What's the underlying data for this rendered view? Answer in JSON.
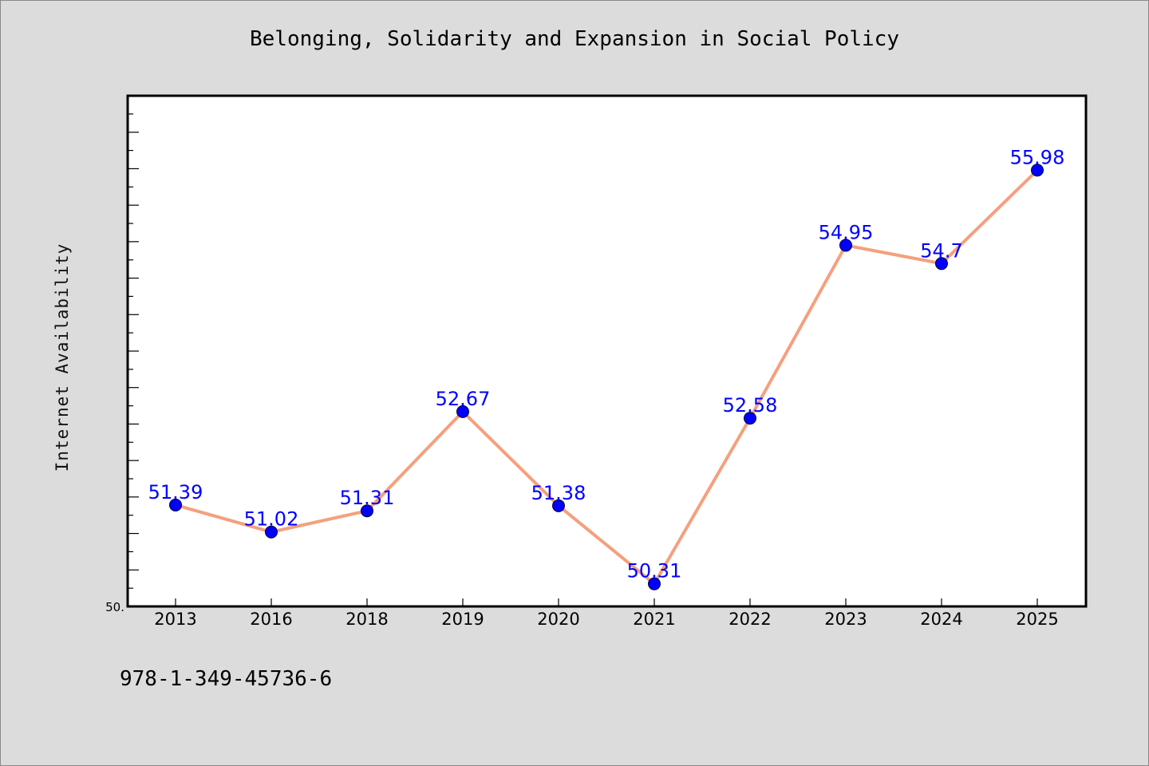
{
  "page": {
    "isbn": "978-1-349-45736-6"
  },
  "chart_data": {
    "type": "line",
    "title": "Belonging, Solidarity and Expansion in Social Policy",
    "xlabel": "",
    "ylabel": "Internet Availability",
    "categories": [
      "2013",
      "2016",
      "2018",
      "2019",
      "2020",
      "2021",
      "2022",
      "2023",
      "2024",
      "2025"
    ],
    "series": [
      {
        "values": [
          51.39,
          51.02,
          51.31,
          52.67,
          51.38,
          50.31,
          52.58,
          54.95,
          54.7,
          55.98
        ],
        "labels": [
          "51.39",
          "51.02",
          "51.31",
          "52.67",
          "51.38",
          "50.31",
          "52.58",
          "54.95",
          "54.7",
          "55.98"
        ]
      }
    ],
    "ylim": [
      50.0,
      57.0
    ],
    "y_tick_label": "50.",
    "grid": false,
    "legend": "none",
    "colors": {
      "line": "#f4a07e",
      "marker": "#0000ff",
      "data_label": "#0000ff",
      "plot_background": "#ffffff",
      "figure_background": "#dcdcdc"
    }
  }
}
